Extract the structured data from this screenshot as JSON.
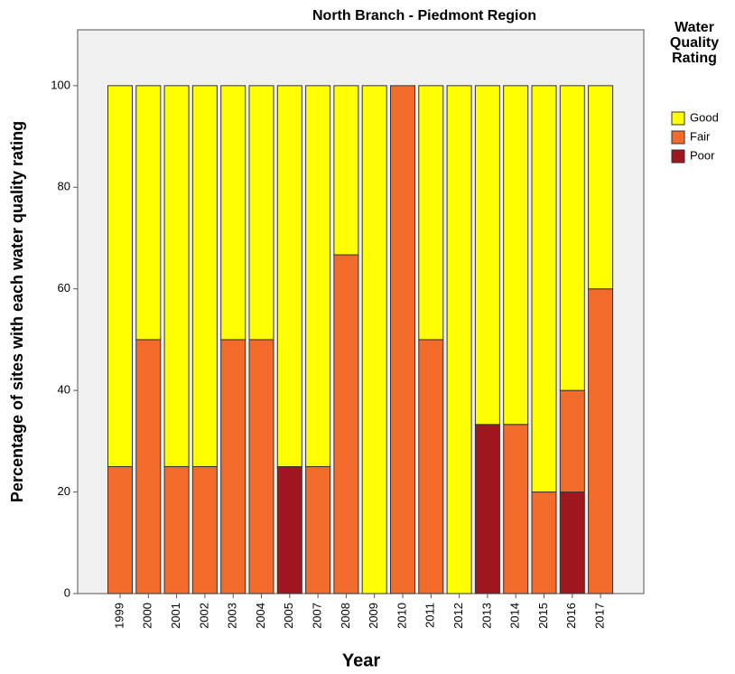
{
  "chart_data": {
    "type": "stacked_bar",
    "title": "North Branch - Piedmont Region",
    "x_label": "Year",
    "y_label": "Percentage of sites with each water quality rating",
    "legend_title": "Water Quality Rating",
    "categories": [
      "1999",
      "2000",
      "2001",
      "2002",
      "2003",
      "2004",
      "2005",
      "2007",
      "2008",
      "2009",
      "2010",
      "2011",
      "2012",
      "2013",
      "2014",
      "2015",
      "2016",
      "2017"
    ],
    "series": [
      {
        "name": "Poor",
        "color": "#a0161e",
        "values": [
          0,
          0,
          0,
          0,
          0,
          0,
          25,
          0,
          0,
          0,
          0,
          0,
          0,
          33.3,
          0,
          0,
          20,
          0
        ]
      },
      {
        "name": "Fair",
        "color": "#f26b2a",
        "values": [
          25,
          50,
          25,
          25,
          50,
          50,
          0,
          25,
          66.7,
          0,
          100,
          50,
          0,
          0,
          33.3,
          20,
          20,
          60
        ]
      },
      {
        "name": "Good",
        "color": "#ffff00",
        "values": [
          75,
          50,
          75,
          75,
          50,
          50,
          75,
          75,
          33.3,
          100,
          0,
          50,
          100,
          66.7,
          66.7,
          80,
          60,
          40
        ]
      }
    ],
    "ylim": [
      0,
      111
    ],
    "yticks": [
      0,
      20,
      40,
      60,
      80,
      100
    ]
  }
}
